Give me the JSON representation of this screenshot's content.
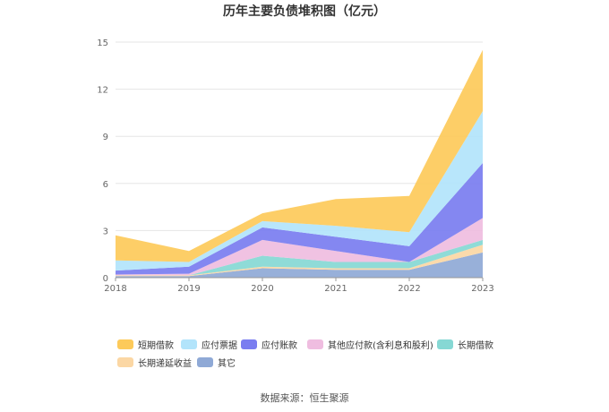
{
  "source_text": "数据来源：恒生聚源",
  "chart_data": {
    "type": "area",
    "stacked": true,
    "title": "历年主要负债堆积图（亿元）",
    "xlabel": "",
    "ylabel": "",
    "x": [
      "2018",
      "2019",
      "2020",
      "2021",
      "2022",
      "2023"
    ],
    "ylim": [
      0,
      15
    ],
    "yticks": [
      0,
      3,
      6,
      9,
      12,
      15
    ],
    "grid": true,
    "legend_position": "bottom",
    "series": [
      {
        "name": "其它",
        "color": "#8fa9d6",
        "values": [
          0.1,
          0.1,
          0.6,
          0.5,
          0.5,
          1.6
        ]
      },
      {
        "name": "长期递延收益",
        "color": "#fbd7a4",
        "values": [
          0.05,
          0.05,
          0.1,
          0.1,
          0.1,
          0.5
        ]
      },
      {
        "name": "长期借款",
        "color": "#86d8d4",
        "values": [
          0.0,
          0.0,
          0.7,
          0.4,
          0.4,
          0.3
        ]
      },
      {
        "name": "其他应付款(含利息和股利)",
        "color": "#efbde0",
        "values": [
          0.05,
          0.1,
          1.0,
          0.7,
          0.0,
          1.4
        ]
      },
      {
        "name": "应付账款",
        "color": "#7a7df0",
        "values": [
          0.25,
          0.45,
          0.8,
          0.9,
          1.0,
          3.5
        ]
      },
      {
        "name": "应付票据",
        "color": "#b2e4fb",
        "values": [
          0.65,
          0.3,
          0.4,
          0.7,
          0.9,
          3.3
        ]
      },
      {
        "name": "短期借款",
        "color": "#fdca5a",
        "values": [
          1.6,
          0.7,
          0.5,
          1.7,
          2.3,
          3.9
        ]
      }
    ],
    "legend_order": [
      "短期借款",
      "应付票据",
      "应付账款",
      "其他应付款(含利息和股利)",
      "长期借款",
      "长期递延收益",
      "其它"
    ]
  }
}
